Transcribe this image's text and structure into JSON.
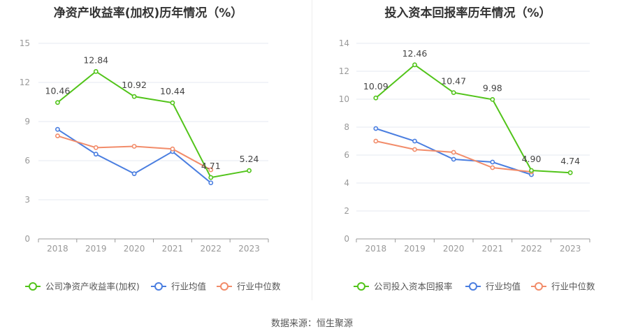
{
  "footer": {
    "source": "数据来源：恒生聚源"
  },
  "chart_data": [
    {
      "type": "line",
      "title": "净资产收益率(加权)历年情况（%）",
      "categories": [
        "2018",
        "2019",
        "2020",
        "2021",
        "2022",
        "2023"
      ],
      "ylim": [
        0,
        15
      ],
      "yticks": [
        0,
        3,
        6,
        9,
        12,
        15
      ],
      "grid": true,
      "legend_position": "bottom",
      "series": [
        {
          "name": "公司净资产收益率(加权)",
          "color": "#52c41a",
          "values": [
            10.46,
            12.84,
            10.92,
            10.44,
            4.71,
            5.24
          ],
          "labels": [
            "10.46",
            "12.84",
            "10.92",
            "10.44",
            "4.71",
            "5.24"
          ]
        },
        {
          "name": "行业均值",
          "color": "#4a7ee0",
          "values": [
            8.4,
            6.5,
            5.0,
            6.7,
            4.3,
            null
          ]
        },
        {
          "name": "行业中位数",
          "color": "#f28c6a",
          "values": [
            7.9,
            7.0,
            7.1,
            6.9,
            5.3,
            null
          ]
        }
      ]
    },
    {
      "type": "line",
      "title": "投入资本回报率历年情况（%）",
      "categories": [
        "2018",
        "2019",
        "2020",
        "2021",
        "2022",
        "2023"
      ],
      "ylim": [
        0,
        14
      ],
      "yticks": [
        0,
        2,
        4,
        6,
        8,
        10,
        12,
        14
      ],
      "grid": true,
      "legend_position": "bottom",
      "series": [
        {
          "name": "公司投入资本回报率",
          "color": "#52c41a",
          "values": [
            10.09,
            12.46,
            10.47,
            9.98,
            4.9,
            4.74
          ],
          "labels": [
            "10.09",
            "12.46",
            "10.47",
            "9.98",
            "4.90",
            "4.74"
          ]
        },
        {
          "name": "行业均值",
          "color": "#4a7ee0",
          "values": [
            7.9,
            7.0,
            5.7,
            5.5,
            4.6,
            null
          ]
        },
        {
          "name": "行业中位数",
          "color": "#f28c6a",
          "values": [
            7.0,
            6.4,
            6.2,
            5.1,
            4.8,
            null
          ]
        }
      ]
    }
  ]
}
